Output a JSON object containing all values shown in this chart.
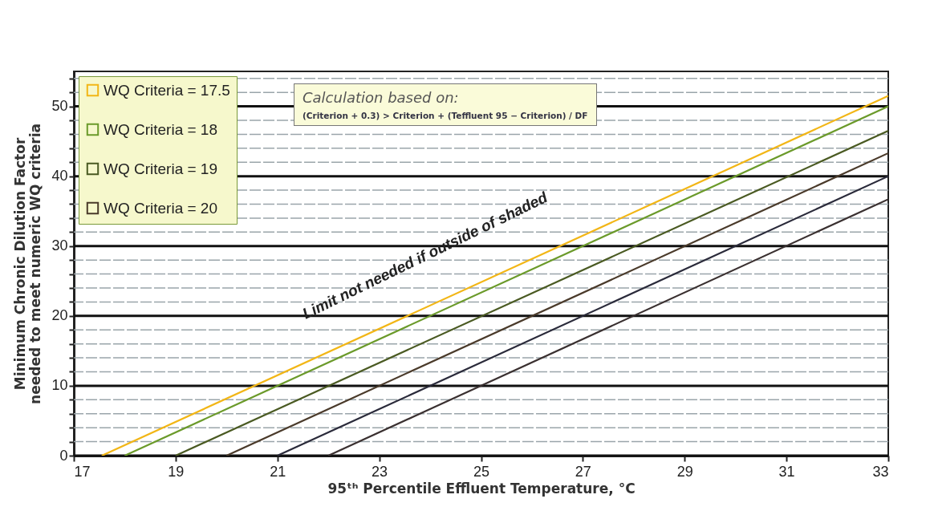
{
  "chart_data": {
    "type": "line",
    "xlabel": "95ᵗʰ Percentile Effluent Temperature, °C",
    "ylabel": "Minimum Chronic Dilution Factor needed to meet numeric WQ criteria",
    "annotations": [
      "Calculation based on:",
      "(Criterion + 0.3) > Criterion + (Teffluent 95 − Criterion) / DF",
      "Limit not needed if outside of shaded"
    ],
    "series": [
      {
        "name": "WQ Criteria = 17.5",
        "color": "#f2b616",
        "x": [
          17.55,
          33
        ],
        "values": [
          0,
          51.5
        ]
      },
      {
        "name": "WQ Criteria = 18",
        "color": "#6b9a2a",
        "x": [
          18,
          33
        ],
        "values": [
          0,
          50
        ]
      },
      {
        "name": "WQ Criteria = 19",
        "color": "#4a5a22",
        "x": [
          19,
          33
        ],
        "values": [
          0,
          46.5
        ]
      },
      {
        "name": "WQ Criteria = 20",
        "color": "#4a3a2a",
        "x": [
          20,
          33
        ],
        "values": [
          0,
          43.3
        ]
      },
      {
        "color": "#2a2a3a",
        "x": [
          21,
          33
        ],
        "values": [
          0,
          40
        ]
      },
      {
        "color": "#3a3030",
        "x": [
          22,
          33
        ],
        "values": [
          0,
          36.7
        ]
      }
    ],
    "xlim": [
      17,
      33
    ],
    "xticks": [
      17,
      19,
      21,
      23,
      25,
      27,
      29,
      31,
      33
    ],
    "ylim": [
      0,
      55
    ],
    "yticks": [
      0,
      {
        "value": 2,
        "label": null
      },
      {
        "value": 4,
        "label": null
      },
      {
        "value": 6,
        "label": null
      },
      {
        "value": 8,
        "label": null
      },
      10,
      {
        "value": 12,
        "label": null
      },
      {
        "value": 14,
        "label": null
      },
      {
        "value": 16,
        "label": null
      },
      {
        "value": 18,
        "label": null
      },
      20,
      {
        "value": 22,
        "label": null
      },
      {
        "value": 24,
        "label": null
      },
      {
        "value": 26,
        "label": null
      },
      {
        "value": 28,
        "label": null
      },
      30,
      {
        "value": 32,
        "label": null
      },
      {
        "value": 34,
        "label": null
      },
      {
        "value": 36,
        "label": null
      },
      {
        "value": 38,
        "label": null
      },
      40,
      {
        "value": 42,
        "label": null
      },
      {
        "value": 44,
        "label": null
      },
      {
        "value": 46,
        "label": null
      },
      {
        "value": 48,
        "label": null
      },
      50,
      {
        "value": 52,
        "label": null
      },
      {
        "value": 54,
        "label": null
      }
    ],
    "grid": "y",
    "legend": "top left",
    "marker": "none",
    "line_style": "solid"
  }
}
